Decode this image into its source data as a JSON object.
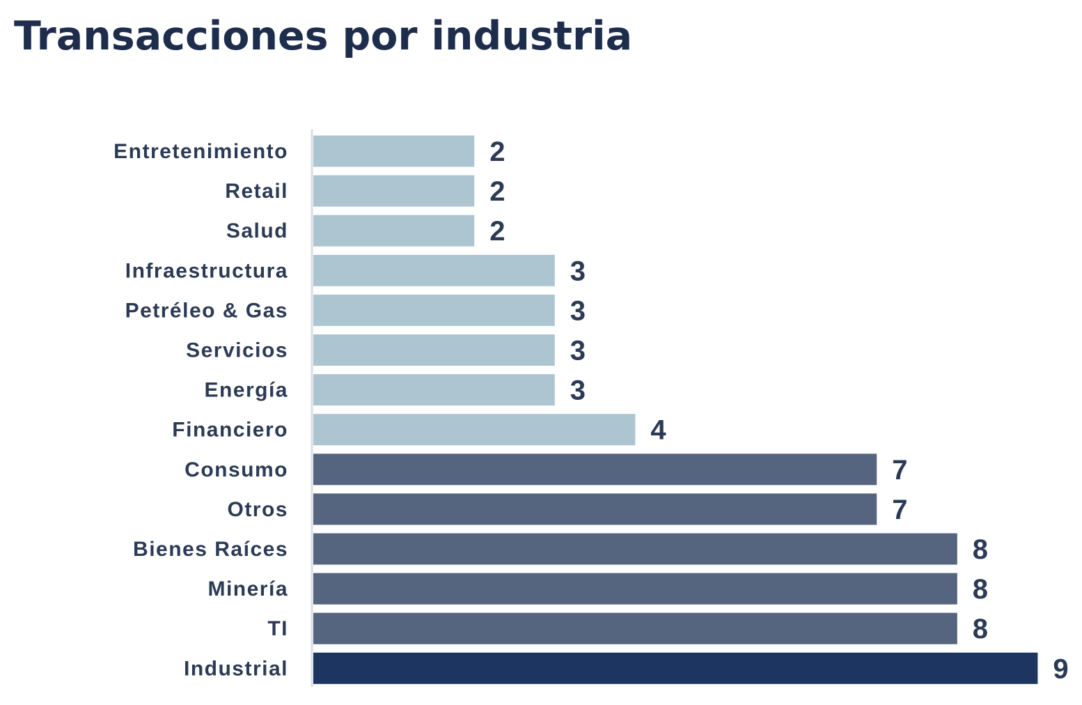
{
  "chart_data": {
    "type": "bar",
    "orientation": "horizontal",
    "title": "Transacciones por industria",
    "categories": [
      "Entretenimiento",
      "Retail",
      "Salud",
      "Infraestructura",
      "Petréleo & Gas",
      "Servicios",
      "Energía",
      "Financiero",
      "Consumo",
      "Otros",
      "Bienes Raíces",
      "Minería",
      "TI",
      "Industrial"
    ],
    "values": [
      2,
      2,
      2,
      3,
      3,
      3,
      3,
      4,
      7,
      7,
      8,
      8,
      8,
      9
    ],
    "bar_colors": [
      "#adc4d1",
      "#adc4d1",
      "#adc4d1",
      "#adc4d1",
      "#adc4d1",
      "#adc4d1",
      "#adc4d1",
      "#adc4d1",
      "#55647f",
      "#55647f",
      "#55647f",
      "#55647f",
      "#55647f",
      "#1c3661"
    ],
    "xlim": [
      0,
      9
    ],
    "grid": false,
    "legend": "none",
    "data_labels": true
  },
  "colors": {
    "title": "#1f2d4d",
    "label_text": "#2b3a55",
    "axis_line": "#d9dde3",
    "low_bar": "#adc4d1",
    "mid_bar": "#55647f",
    "top_bar": "#1c3661"
  }
}
